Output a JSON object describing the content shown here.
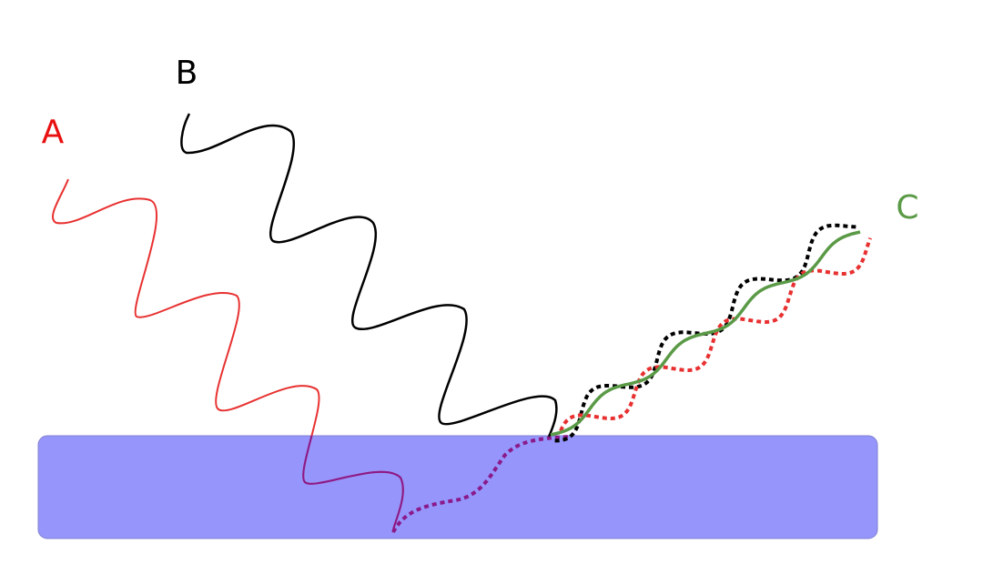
{
  "waves": [
    {
      "label": "A"
    },
    {
      "label": "B"
    },
    {
      "label": "C"
    }
  ]
}
